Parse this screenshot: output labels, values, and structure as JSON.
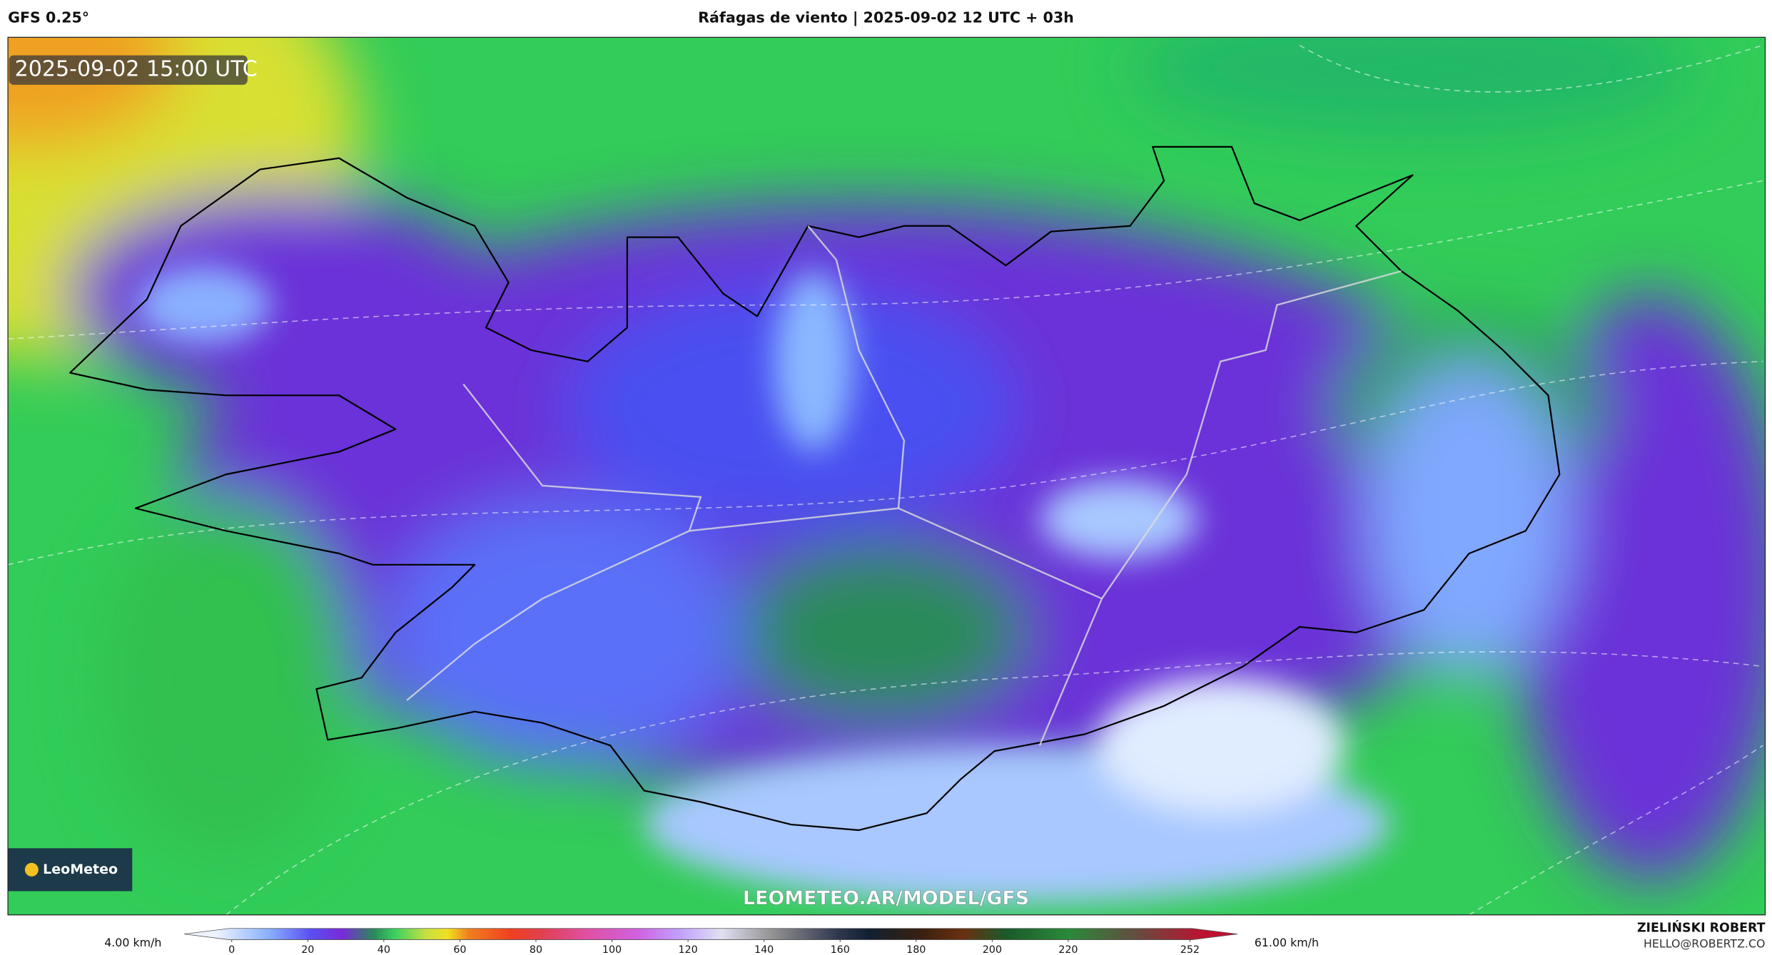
{
  "header": {
    "model": "GFS 0.25°",
    "title": "Ráfagas de viento | 2025-09-02 12 UTC + 03h"
  },
  "map": {
    "valid_time": "2025-09-02 15:00 UTC",
    "logo": "LeoMeteo",
    "url": "LEOMETEO.AR/MODEL/GFS"
  },
  "colorbar": {
    "min_label": "4.00 km/h",
    "max_label": "61.00 km/h",
    "lim": [
      -12.5,
      264.5
    ],
    "ticks": [
      0,
      20,
      40,
      60,
      80,
      100,
      120,
      140,
      160,
      180,
      200,
      220,
      252
    ]
  },
  "footer": {
    "author": "ZIELIŃSKI ROBERT",
    "email": "HELLO@ROBERTZ.CO"
  }
}
